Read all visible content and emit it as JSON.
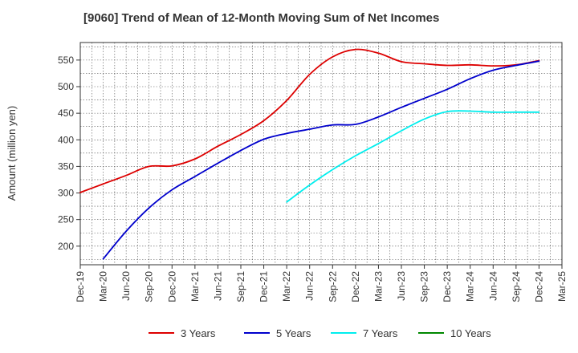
{
  "chart_data": {
    "type": "line",
    "title": "[9060]  Trend of Mean of 12-Month Moving Sum of Net Incomes",
    "xlabel": "",
    "ylabel": "Amount (million yen)",
    "ylim": [
      165,
      583
    ],
    "yticks": [
      200,
      250,
      300,
      350,
      400,
      450,
      500,
      550
    ],
    "categories": [
      "Dec-19",
      "Mar-20",
      "Jun-20",
      "Sep-20",
      "Dec-20",
      "Mar-21",
      "Jun-21",
      "Sep-21",
      "Dec-21",
      "Mar-22",
      "Jun-22",
      "Sep-22",
      "Dec-22",
      "Mar-23",
      "Jun-23",
      "Sep-23",
      "Dec-23",
      "Mar-24",
      "Jun-24",
      "Sep-24",
      "Dec-24",
      "Mar-25"
    ],
    "grid": true,
    "legend_position": "bottom",
    "series": [
      {
        "name": "3 Years",
        "color": "#dd0000",
        "values": [
          301,
          317,
          333,
          350,
          351,
          364,
          388,
          410,
          436,
          474,
          523,
          556,
          570,
          563,
          547,
          543,
          540,
          541,
          539,
          541,
          549,
          null
        ]
      },
      {
        "name": "5 Years",
        "color": "#0000cc",
        "values": [
          null,
          176,
          228,
          272,
          306,
          331,
          356,
          380,
          401,
          412,
          420,
          428,
          429,
          443,
          461,
          478,
          495,
          515,
          531,
          540,
          548,
          null
        ]
      },
      {
        "name": "7 Years",
        "color": "#00eeee",
        "values": [
          null,
          null,
          null,
          null,
          null,
          null,
          null,
          null,
          null,
          283,
          315,
          344,
          370,
          393,
          417,
          439,
          453,
          454,
          452,
          452,
          452,
          null
        ]
      },
      {
        "name": "10 Years",
        "color": "#008800",
        "values": [
          null,
          null,
          null,
          null,
          null,
          null,
          null,
          null,
          null,
          null,
          null,
          null,
          null,
          null,
          null,
          null,
          null,
          null,
          null,
          null,
          null,
          null
        ]
      }
    ]
  }
}
